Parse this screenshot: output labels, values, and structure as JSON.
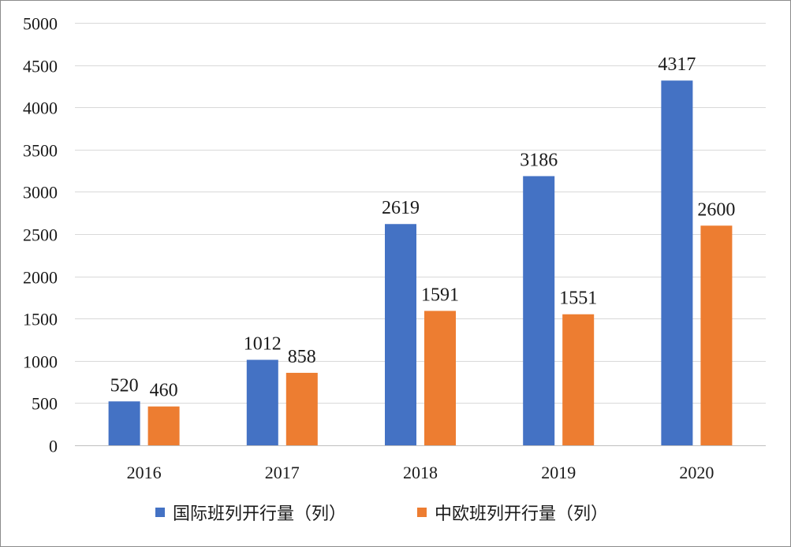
{
  "chart_data": {
    "type": "bar",
    "categories": [
      "2016",
      "2017",
      "2018",
      "2019",
      "2020"
    ],
    "series": [
      {
        "name": "国际班列开行量（列）",
        "color": "#4472c4",
        "values": [
          520,
          1012,
          2619,
          3186,
          4317
        ]
      },
      {
        "name": "中欧班列开行量（列）",
        "color": "#ed7d31",
        "values": [
          460,
          858,
          1591,
          1551,
          2600
        ]
      }
    ],
    "ylim": [
      0,
      5000
    ],
    "yticks": [
      0,
      500,
      1000,
      1500,
      2000,
      2500,
      3000,
      3500,
      4000,
      4500,
      5000
    ],
    "grid": true,
    "legend": "bottom",
    "data_labels": true
  }
}
